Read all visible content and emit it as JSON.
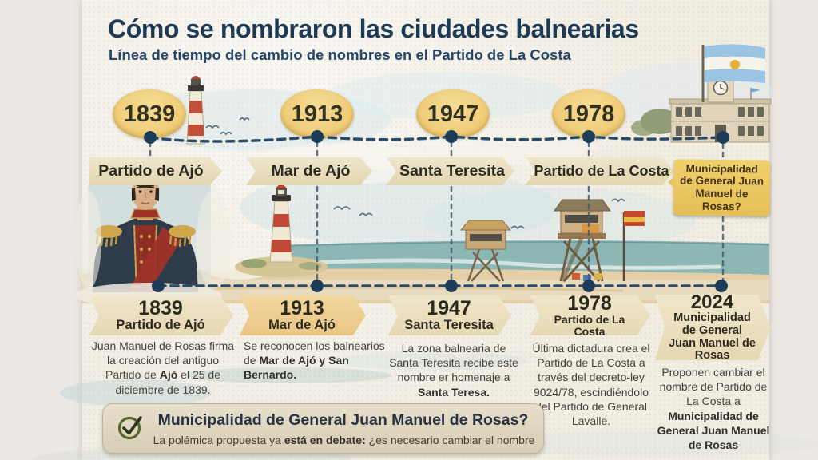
{
  "title": "Cómo se nombraron las ciudades balnearias",
  "subtitle": "Línea de tiempo del cambio de nombres en el Partido de La Costa",
  "colors": {
    "title_navy": "#1d3a56",
    "badge_gold": "#efcc7c",
    "ribbon_cream": "#e9dfc2",
    "ribbon_gold": "#eecb8a",
    "question_yellow": "#eac75f",
    "timeline_navy": "#2b4a68",
    "check_green": "#5a6530"
  },
  "timeline_top": {
    "milestones": [
      {
        "year": "1839",
        "label": "Partido de Ajó"
      },
      {
        "year": "1913",
        "label": "Mar de Ajó"
      },
      {
        "year": "1947",
        "label": "Santa Teresita"
      },
      {
        "year": "1978",
        "label": "Partido de La Costa"
      }
    ],
    "question_label": "Municipalidad de General Juan Manuel de Rosas?"
  },
  "entries": [
    {
      "year": "1839",
      "name": "Partido de Ajó",
      "desc": [
        {
          "t": "Juan Manuel de Rosas firma la creación del antiguo Partido de "
        },
        {
          "t": "Ajó",
          "b": true
        },
        {
          "t": " el 25 de diciembre de 1839."
        }
      ]
    },
    {
      "year": "1913",
      "name": "Mar de Ajó",
      "desc": [
        {
          "t": "Se reconocen los balnearios de "
        },
        {
          "t": "Mar de Ajó y San Bernardo.",
          "b": true
        }
      ]
    },
    {
      "year": "1947",
      "name": "Santa Teresita",
      "desc": [
        {
          "t": "La zona balnearia de Santa Teresita recibe este nombre er homenaje a "
        },
        {
          "t": "Santa Teresa.",
          "b": true
        }
      ]
    },
    {
      "year": "1978",
      "name": "Partido de La Costa",
      "desc": [
        {
          "t": "Última dictadura crea el Partido de La Costa a través del decreto-ley 9024/78, escindiéndolo del Partido de General Lavalle."
        }
      ]
    },
    {
      "year": "2024",
      "name": "Municipalidad de General Juan Manuel de Rosas",
      "desc": [
        {
          "t": "Proponen cambiar el nombre de Partido de La Costa a "
        },
        {
          "t": "Municipalidad de General Juan Manuel de Rosas",
          "b": true
        }
      ]
    }
  ],
  "callout": {
    "icon": "check-icon",
    "title": "Municipalidad de General Juan Manuel de Rosas?",
    "subtitle": [
      {
        "t": "La polémica propuesta ya "
      },
      {
        "t": "está en debate:",
        "b": true
      },
      {
        "t": " ¿es necesario cambiar el nombre"
      }
    ]
  },
  "scene": {
    "illustrations": [
      "portrait-juan-manuel-de-rosas",
      "lighthouse",
      "beach-and-sea",
      "lifeguard-towers",
      "beach-flag",
      "municipal-building",
      "argentina-flag",
      "seagulls"
    ]
  }
}
